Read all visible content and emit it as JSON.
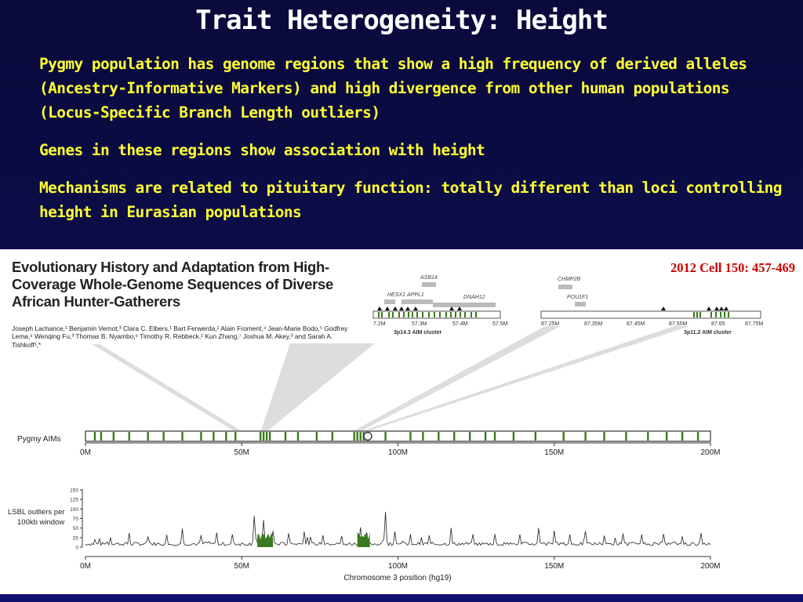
{
  "slide": {
    "title": "Trait Heterogeneity: Height",
    "bullet_marker": "",
    "bullets": [
      "Pygmy population has genome regions that show a high frequency of derived alleles (Ancestry-Informative Markers) and high divergence from other human populations (Locus-Specific Branch Length outliers)",
      "Genes in these regions show association with height",
      "Mechanisms are related to pituitary function: totally different than loci controlling height in Eurasian populations"
    ]
  },
  "figure": {
    "paper_title": "Evolutionary History and Adaptation from High-Coverage Whole-Genome Sequences of Diverse African Hunter-Gatherers",
    "authors": "Joseph Lachance,¹ Benjamin Vernot,³ Clara C. Elbers,¹ Bart Ferwerda,¹ Alain Froment,⁴ Jean-Marie Bodo,⁵ Godfrey Lema,⁶ Wenqing Fu,³ Thomas B. Nyambo,⁶ Timothy R. Rebbeck,² Kun Zhang,⁷ Joshua M. Akey,³ and Sarah A. Tishkoff¹,*",
    "citation": "2012 Cell 150: 457-469",
    "colors": {
      "marker_green": "#3a7a1e",
      "citation_red": "#cc0000",
      "slide_bg": "#0c0c48",
      "bullet_yellow": "#ffff33"
    },
    "inset_left": {
      "genes": [
        "ASB14",
        "HESX1",
        "APPL1",
        "DNAH12"
      ],
      "ticks": [
        "7.2M",
        "57.3M",
        "57.4M",
        "57.5M"
      ],
      "cluster_label": "3p14.3 AIM cluster"
    },
    "inset_right": {
      "genes": [
        "CHMP2B",
        "POU1F1"
      ],
      "ticks": [
        "87.25M",
        "87.35M",
        "87.45M",
        "87.55M",
        "87.65",
        "87.75M"
      ],
      "cluster_label": "3p11.2 AIM cluster"
    },
    "aims_track": {
      "label": "Pygmy AIMs",
      "ticks": [
        "0M",
        "50M",
        "100M",
        "150M",
        "200M"
      ],
      "marker_positions_M": [
        3,
        5,
        9,
        14,
        20,
        25,
        31,
        37,
        41,
        45,
        48,
        56,
        57,
        58,
        59,
        64,
        68,
        74,
        79,
        86,
        87,
        88,
        89,
        90,
        96,
        104,
        108,
        113,
        118,
        123,
        128,
        131,
        137,
        144,
        153,
        160,
        166,
        173,
        180,
        186,
        191,
        196
      ]
    },
    "lsbl_plot": {
      "ylabel_line1": "LSBL outliers per",
      "ylabel_line2": "100kb window",
      "y_ticks": [
        "150",
        "125",
        "100",
        "75",
        "50",
        "25",
        "0"
      ],
      "x_ticks": [
        "0M",
        "50M",
        "100M",
        "150M",
        "200M"
      ],
      "xlabel": "Chromosome 3 position (hg19)",
      "ylim": [
        0,
        150
      ],
      "peaks": [
        [
          3,
          18
        ],
        [
          8,
          22
        ],
        [
          14,
          35
        ],
        [
          20,
          25
        ],
        [
          26,
          30
        ],
        [
          31,
          45
        ],
        [
          37,
          28
        ],
        [
          42,
          24
        ],
        [
          47,
          32
        ],
        [
          54,
          80
        ],
        [
          57,
          70
        ],
        [
          60,
          42
        ],
        [
          65,
          35
        ],
        [
          70,
          38
        ],
        [
          76,
          30
        ],
        [
          82,
          28
        ],
        [
          88,
          50
        ],
        [
          90,
          38
        ],
        [
          96,
          90
        ],
        [
          99,
          40
        ],
        [
          104,
          30
        ],
        [
          110,
          28
        ],
        [
          117,
          40
        ],
        [
          124,
          25
        ],
        [
          131,
          32
        ],
        [
          139,
          30
        ],
        [
          145,
          50
        ],
        [
          150,
          28
        ],
        [
          155,
          30
        ],
        [
          160,
          38
        ],
        [
          166,
          28
        ],
        [
          172,
          35
        ],
        [
          178,
          30
        ],
        [
          185,
          30
        ],
        [
          191,
          28
        ],
        [
          197,
          25
        ]
      ],
      "highlight_regions_M": [
        [
          55,
          60
        ],
        [
          87,
          91
        ]
      ]
    }
  }
}
